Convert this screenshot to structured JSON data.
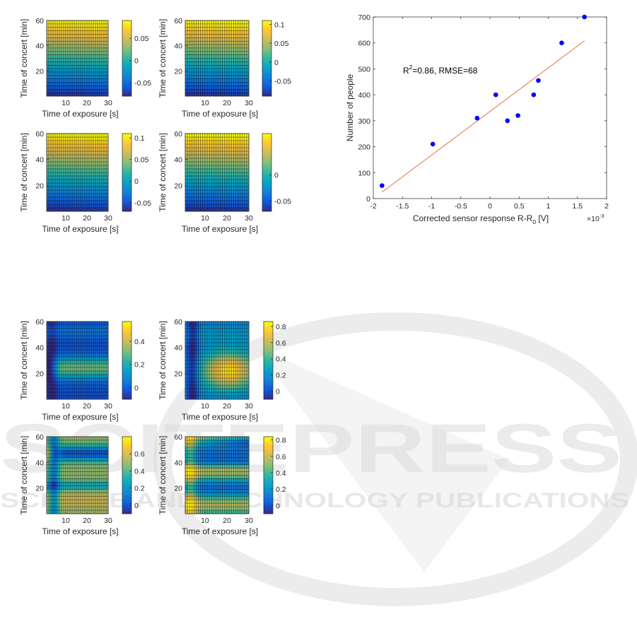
{
  "colors": {
    "parula": [
      "#352a87",
      "#0f5cdd",
      "#1481d6",
      "#06a4ca",
      "#2eb7a4",
      "#87bf77",
      "#d1bb59",
      "#fec832",
      "#f9fb0e"
    ],
    "scatter_point": "#0000ff",
    "fit_line": "#d95319",
    "mesh": "#000000",
    "watermark": "#d9d9d9"
  },
  "watermark": {
    "main": "SCITEPRESS",
    "sub": "SCIENCE AND TECHNOLOGY PUBLICATIONS"
  },
  "chart_data": [
    {
      "id": "A1",
      "type": "heatmap",
      "pattern": "grad",
      "xlabel": "Time of exposure [s]",
      "ylabel": "Time of concert [min]",
      "xlim": [
        1,
        30
      ],
      "ylim": [
        0,
        60
      ],
      "xticks": [
        "10",
        "20",
        "30"
      ],
      "yticks": [
        "20",
        "40",
        "60"
      ],
      "clim": [
        -0.08,
        0.09
      ],
      "cticks": [
        {
          "v": 0.05,
          "t": "0.05"
        },
        {
          "v": 0,
          "t": "0"
        },
        {
          "v": -0.05,
          "t": "-0.05"
        }
      ]
    },
    {
      "id": "A2",
      "type": "heatmap",
      "pattern": "grad",
      "xlabel": "Time of exposure [s]",
      "ylabel": "Time of concert [min]",
      "xlim": [
        1,
        30
      ],
      "ylim": [
        0,
        60
      ],
      "xticks": [
        "10",
        "20",
        "30"
      ],
      "yticks": [
        "20",
        "40",
        "60"
      ],
      "clim": [
        -0.09,
        0.11
      ],
      "cticks": [
        {
          "v": 0.1,
          "t": "0.1"
        },
        {
          "v": 0.05,
          "t": "0.05"
        },
        {
          "v": 0,
          "t": "0"
        },
        {
          "v": -0.05,
          "t": "-0.05"
        }
      ]
    },
    {
      "id": "A3",
      "type": "heatmap",
      "pattern": "grad",
      "xlabel": "Time of exposure [s]",
      "ylabel": "Time of concert [min]",
      "xlim": [
        1,
        30
      ],
      "ylim": [
        0,
        60
      ],
      "xticks": [
        "10",
        "20",
        "30"
      ],
      "yticks": [
        "20",
        "40",
        "60"
      ],
      "clim": [
        -0.07,
        0.11
      ],
      "cticks": [
        {
          "v": 0.1,
          "t": "0.1"
        },
        {
          "v": 0.05,
          "t": "0.05"
        },
        {
          "v": 0,
          "t": "0"
        },
        {
          "v": -0.05,
          "t": "-0.05"
        }
      ]
    },
    {
      "id": "A4",
      "type": "heatmap",
      "pattern": "grad",
      "xlabel": "Time of exposure [s]",
      "ylabel": "Time of concert [min]",
      "xlim": [
        1,
        30
      ],
      "ylim": [
        0,
        60
      ],
      "xticks": [
        "10",
        "20",
        "30"
      ],
      "yticks": [
        "20",
        "40",
        "60"
      ],
      "clim": [
        -0.07,
        0.08
      ],
      "cticks": [
        {
          "v": 0,
          "t": "0"
        },
        {
          "v": -0.05,
          "t": "-0.05"
        }
      ]
    },
    {
      "id": "B1",
      "type": "heatmap",
      "pattern": "band1",
      "xlabel": "Time of exposure [s]",
      "ylabel": "Time of concert [min]",
      "xlim": [
        1,
        30
      ],
      "ylim": [
        0,
        60
      ],
      "xticks": [
        "10",
        "20",
        "30"
      ],
      "yticks": [
        "20",
        "40",
        "60"
      ],
      "clim": [
        -0.1,
        0.57
      ],
      "cticks": [
        {
          "v": 0.4,
          "t": "0.4"
        },
        {
          "v": 0.2,
          "t": "0.2"
        },
        {
          "v": 0,
          "t": "0"
        }
      ]
    },
    {
      "id": "B2",
      "type": "heatmap",
      "pattern": "band2",
      "xlabel": "Time of exposure [s]",
      "ylabel": "Time of concert [min]",
      "xlim": [
        1,
        30
      ],
      "ylim": [
        0,
        60
      ],
      "xticks": [
        "10",
        "20",
        "30"
      ],
      "yticks": [
        "20",
        "40",
        "60"
      ],
      "clim": [
        -0.1,
        0.86
      ],
      "cticks": [
        {
          "v": 0.8,
          "t": "0.8"
        },
        {
          "v": 0.6,
          "t": "0.6"
        },
        {
          "v": 0.4,
          "t": "0.4"
        },
        {
          "v": 0.2,
          "t": "0.2"
        },
        {
          "v": 0,
          "t": "0"
        }
      ]
    },
    {
      "id": "B3",
      "type": "heatmap",
      "pattern": "band3",
      "xlabel": "Time of exposure [s]",
      "ylabel": "Time of concert [min]",
      "xlim": [
        1,
        30
      ],
      "ylim": [
        0,
        60
      ],
      "xticks": [
        "10",
        "20",
        "30"
      ],
      "yticks": [
        "20",
        "40",
        "60"
      ],
      "clim": [
        -0.1,
        0.8
      ],
      "cticks": [
        {
          "v": 0.6,
          "t": "0.6"
        },
        {
          "v": 0.4,
          "t": "0.4"
        },
        {
          "v": 0.2,
          "t": "0.2"
        },
        {
          "v": 0,
          "t": "0"
        }
      ]
    },
    {
      "id": "B4",
      "type": "heatmap",
      "pattern": "band4",
      "xlabel": "Time of exposure [s]",
      "ylabel": "Time of concert [min]",
      "xlim": [
        1,
        30
      ],
      "ylim": [
        0,
        60
      ],
      "xticks": [
        "10",
        "20",
        "30"
      ],
      "yticks": [
        "20",
        "40",
        "60"
      ],
      "clim": [
        -0.1,
        0.84
      ],
      "cticks": [
        {
          "v": 0.8,
          "t": "0.8"
        },
        {
          "v": 0.6,
          "t": "0.6"
        },
        {
          "v": 0.4,
          "t": "0.4"
        },
        {
          "v": 0.2,
          "t": "0.2"
        },
        {
          "v": 0,
          "t": "0"
        }
      ]
    },
    {
      "id": "S",
      "type": "scatter",
      "xlabel_main": "Corrected sensor response R-R",
      "xlabel_sub": "0",
      "xlabel_unit": " [V]",
      "x_exponent_base": "×10",
      "x_exponent": "-3",
      "ylabel": "Number of people",
      "xlim": [
        -2,
        2
      ],
      "ylim": [
        0,
        700
      ],
      "xticks": [
        {
          "v": -2,
          "t": "-2"
        },
        {
          "v": -1.5,
          "t": "-1.5"
        },
        {
          "v": -1,
          "t": "-1"
        },
        {
          "v": -0.5,
          "t": "-0.5"
        },
        {
          "v": 0,
          "t": "0"
        },
        {
          "v": 0.5,
          "t": "0.5"
        },
        {
          "v": 1,
          "t": "1"
        },
        {
          "v": 1.5,
          "t": "1.5"
        },
        {
          "v": 2,
          "t": "2"
        }
      ],
      "yticks": [
        {
          "v": 0,
          "t": "0"
        },
        {
          "v": 100,
          "t": "100"
        },
        {
          "v": 200,
          "t": "200"
        },
        {
          "v": 300,
          "t": "300"
        },
        {
          "v": 400,
          "t": "400"
        },
        {
          "v": 500,
          "t": "500"
        },
        {
          "v": 600,
          "t": "600"
        },
        {
          "v": 700,
          "t": "700"
        }
      ],
      "x": [
        -1.85,
        -0.98,
        -0.22,
        0.1,
        0.3,
        0.48,
        0.75,
        0.83,
        1.23,
        1.62
      ],
      "y": [
        50,
        210,
        310,
        400,
        300,
        320,
        400,
        455,
        600,
        700
      ],
      "fit": {
        "x": [
          -1.85,
          1.62
        ],
        "y": [
          25,
          608
        ]
      },
      "annotation": {
        "prefix": "R",
        "sup": "2",
        "rest": "=0.86, RMSE=68"
      }
    }
  ]
}
